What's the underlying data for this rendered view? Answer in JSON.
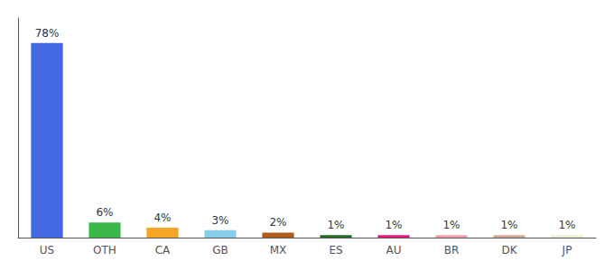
{
  "chart_data": {
    "type": "bar",
    "categories": [
      "US",
      "OTH",
      "CA",
      "GB",
      "MX",
      "ES",
      "AU",
      "BR",
      "DK",
      "JP"
    ],
    "values": [
      78,
      6,
      4,
      3,
      2,
      1,
      1,
      1,
      1,
      1
    ],
    "value_labels": [
      "78%",
      "6%",
      "4%",
      "3%",
      "2%",
      "1%",
      "1%",
      "1%",
      "1%",
      "1%"
    ],
    "colors": [
      "#4169e1",
      "#3cb84a",
      "#f5a623",
      "#87ceeb",
      "#b05c1a",
      "#236b23",
      "#e8187a",
      "#f4a0b0",
      "#d4a898",
      "#f0f0d8"
    ],
    "ylim": [
      0,
      88
    ],
    "grid": false,
    "data_labels": true,
    "tick_labels": "x"
  }
}
